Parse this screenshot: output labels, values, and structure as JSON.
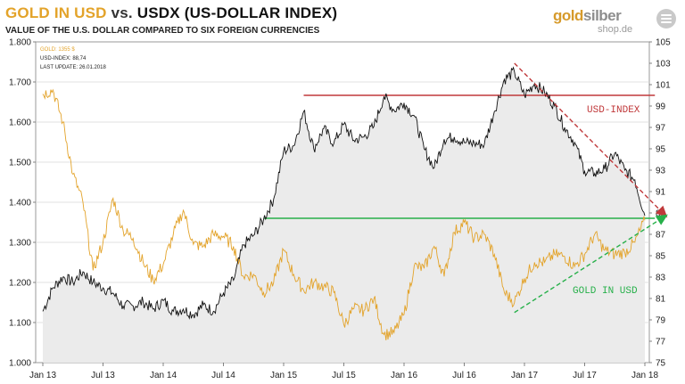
{
  "header": {
    "title_gold": "GOLD IN USD",
    "title_vs": "vs.",
    "title_usdx": "USDX (US-DOLLAR  INDEX)",
    "subtitle": "VALUE OF THE U.S. DOLLAR COMPARED TO SIX FOREIGN CURRENCIES"
  },
  "logo": {
    "gold": "gold",
    "silber": "silber",
    "domain": "shop.de",
    "icon": "menu-lines-icon"
  },
  "colors": {
    "gold": "#e3a32a",
    "usdx": "#111111",
    "resistance": "#c0393b",
    "support": "#27b04a",
    "area": "#ebebeb",
    "grid": "#d7d7d7"
  },
  "chart_data": {
    "type": "line",
    "info": {
      "gold_label": "GOLD: 1355 $",
      "usdx_label": "USD-INDEX: 88,74",
      "update_label": "LAST UPDATE: 26.01.2018"
    },
    "x_ticks": [
      "Jan 13",
      "Jul 13",
      "Jan 14",
      "Jul 14",
      "Jan 15",
      "Jul 15",
      "Jan 16",
      "Jul 16",
      "Jan 17",
      "Jul 17",
      "Jan 18"
    ],
    "left_axis": {
      "unit": "USD",
      "range": [
        1000,
        1800
      ],
      "ticks": [
        "1.000",
        "1.100",
        "1.200",
        "1.300",
        "1.400",
        "1.500",
        "1.600",
        "1.700",
        "1.800"
      ]
    },
    "right_axis": {
      "unit": "index",
      "range": [
        75,
        105
      ],
      "ticks": [
        "75",
        "77",
        "79",
        "81",
        "83",
        "85",
        "87",
        "89",
        "91",
        "93",
        "95",
        "97",
        "99",
        "101",
        "103",
        "105"
      ]
    },
    "series": [
      {
        "name": "GOLD",
        "axis": "left",
        "points": [
          [
            "2013-01",
            1670
          ],
          [
            "2013-02",
            1680
          ],
          [
            "2013-03",
            1600
          ],
          [
            "2013-04",
            1470
          ],
          [
            "2013-05",
            1400
          ],
          [
            "2013-06",
            1230
          ],
          [
            "2013-07",
            1300
          ],
          [
            "2013-08",
            1410
          ],
          [
            "2013-09",
            1330
          ],
          [
            "2013-10",
            1310
          ],
          [
            "2013-11",
            1250
          ],
          [
            "2013-12",
            1205
          ],
          [
            "2014-01",
            1245
          ],
          [
            "2014-02",
            1320
          ],
          [
            "2014-03",
            1380
          ],
          [
            "2014-04",
            1295
          ],
          [
            "2014-05",
            1290
          ],
          [
            "2014-06",
            1320
          ],
          [
            "2014-07",
            1315
          ],
          [
            "2014-08",
            1290
          ],
          [
            "2014-09",
            1215
          ],
          [
            "2014-10",
            1220
          ],
          [
            "2014-11",
            1175
          ],
          [
            "2014-12",
            1200
          ],
          [
            "2015-01",
            1280
          ],
          [
            "2015-02",
            1220
          ],
          [
            "2015-03",
            1180
          ],
          [
            "2015-04",
            1200
          ],
          [
            "2015-05",
            1190
          ],
          [
            "2015-06",
            1175
          ],
          [
            "2015-07",
            1095
          ],
          [
            "2015-08",
            1135
          ],
          [
            "2015-09",
            1130
          ],
          [
            "2015-10",
            1160
          ],
          [
            "2015-11",
            1070
          ],
          [
            "2015-12",
            1075
          ],
          [
            "2016-01",
            1120
          ],
          [
            "2016-02",
            1240
          ],
          [
            "2016-03",
            1235
          ],
          [
            "2016-04",
            1290
          ],
          [
            "2016-05",
            1215
          ],
          [
            "2016-06",
            1325
          ],
          [
            "2016-07",
            1350
          ],
          [
            "2016-08",
            1310
          ],
          [
            "2016-09",
            1320
          ],
          [
            "2016-10",
            1270
          ],
          [
            "2016-11",
            1175
          ],
          [
            "2016-12",
            1150
          ],
          [
            "2017-01",
            1210
          ],
          [
            "2017-02",
            1250
          ],
          [
            "2017-03",
            1250
          ],
          [
            "2017-04",
            1270
          ],
          [
            "2017-05",
            1265
          ],
          [
            "2017-06",
            1240
          ],
          [
            "2017-07",
            1270
          ],
          [
            "2017-08",
            1320
          ],
          [
            "2017-09",
            1280
          ],
          [
            "2017-10",
            1270
          ],
          [
            "2017-11",
            1275
          ],
          [
            "2017-12",
            1300
          ],
          [
            "2018-01",
            1355
          ]
        ]
      },
      {
        "name": "USD-INDEX",
        "axis": "right",
        "points": [
          [
            "2013-01",
            79.8
          ],
          [
            "2013-02",
            82.0
          ],
          [
            "2013-03",
            83.0
          ],
          [
            "2013-04",
            82.5
          ],
          [
            "2013-05",
            83.5
          ],
          [
            "2013-06",
            82.5
          ],
          [
            "2013-07",
            82.0
          ],
          [
            "2013-08",
            81.5
          ],
          [
            "2013-09",
            80.3
          ],
          [
            "2013-10",
            80.3
          ],
          [
            "2013-11",
            80.7
          ],
          [
            "2013-12",
            80.0
          ],
          [
            "2014-01",
            80.8
          ],
          [
            "2014-02",
            79.8
          ],
          [
            "2014-03",
            80.0
          ],
          [
            "2014-04",
            79.5
          ],
          [
            "2014-05",
            80.4
          ],
          [
            "2014-06",
            79.8
          ],
          [
            "2014-07",
            81.5
          ],
          [
            "2014-08",
            82.7
          ],
          [
            "2014-09",
            86.0
          ],
          [
            "2014-10",
            86.9
          ],
          [
            "2014-11",
            88.4
          ],
          [
            "2014-12",
            90.3
          ],
          [
            "2015-01",
            94.8
          ],
          [
            "2015-02",
            95.3
          ],
          [
            "2015-03",
            98.5
          ],
          [
            "2015-04",
            95.0
          ],
          [
            "2015-05",
            96.9
          ],
          [
            "2015-06",
            95.5
          ],
          [
            "2015-07",
            97.3
          ],
          [
            "2015-08",
            95.8
          ],
          [
            "2015-09",
            96.1
          ],
          [
            "2015-10",
            97.1
          ],
          [
            "2015-11",
            99.9
          ],
          [
            "2015-12",
            98.6
          ],
          [
            "2016-01",
            99.3
          ],
          [
            "2016-02",
            98.1
          ],
          [
            "2016-03",
            95.0
          ],
          [
            "2016-04",
            93.2
          ],
          [
            "2016-05",
            95.9
          ],
          [
            "2016-06",
            96.1
          ],
          [
            "2016-07",
            95.6
          ],
          [
            "2016-08",
            95.5
          ],
          [
            "2016-09",
            95.4
          ],
          [
            "2016-10",
            98.5
          ],
          [
            "2016-11",
            101.5
          ],
          [
            "2016-12",
            102.2
          ],
          [
            "2017-01",
            100.0
          ],
          [
            "2017-02",
            101.1
          ],
          [
            "2017-03",
            100.3
          ],
          [
            "2017-04",
            99.0
          ],
          [
            "2017-05",
            97.0
          ],
          [
            "2017-06",
            95.6
          ],
          [
            "2017-07",
            92.9
          ],
          [
            "2017-08",
            92.7
          ],
          [
            "2017-09",
            93.1
          ],
          [
            "2017-10",
            94.6
          ],
          [
            "2017-11",
            93.0
          ],
          [
            "2017-12",
            92.1
          ],
          [
            "2018-01",
            88.74
          ]
        ]
      }
    ],
    "annotations": [
      {
        "label": "USD-INDEX",
        "type": "horizontal-line",
        "axis": "right",
        "value": 100,
        "from": "2015-03",
        "to": "2018-02"
      },
      {
        "label": "",
        "type": "horizontal-line",
        "axis": "right",
        "value": 88.5,
        "from": "2014-11",
        "to": "2018-02"
      },
      {
        "label": "",
        "type": "trend-arrow",
        "axis": "right",
        "from": [
          "2016-12",
          103
        ],
        "to": [
          "2018-03",
          88.8
        ]
      },
      {
        "label": "GOLD IN USD",
        "type": "trend-arrow",
        "axis": "left",
        "from": [
          "2016-12",
          1125
        ],
        "to": [
          "2018-03",
          1365
        ]
      }
    ],
    "grid": "horizontal",
    "legend": "top-left info box"
  }
}
